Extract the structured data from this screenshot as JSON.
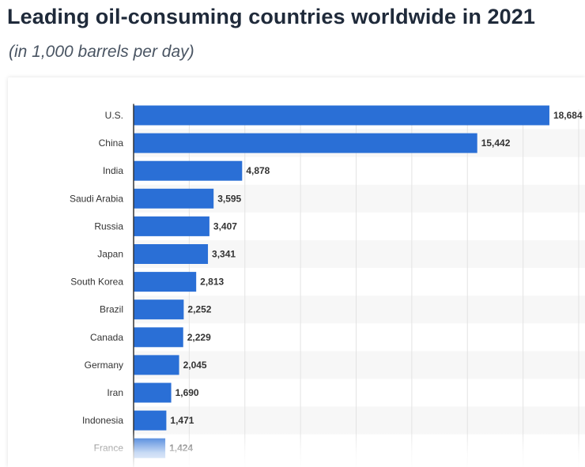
{
  "chart_data": {
    "type": "bar",
    "orientation": "horizontal",
    "title": "Leading oil-consuming countries worldwide in 2021",
    "subtitle": "(in 1,000 barrels per day)",
    "xlabel": "",
    "ylabel": "",
    "xlim": [
      0,
      20000
    ],
    "grid": true,
    "categories": [
      "U.S.",
      "China",
      "India",
      "Saudi Arabia",
      "Russia",
      "Japan",
      "South Korea",
      "Brazil",
      "Canada",
      "Germany",
      "Iran",
      "Indonesia",
      "France"
    ],
    "values": [
      18684,
      15442,
      4878,
      3595,
      3407,
      3341,
      2813,
      2252,
      2229,
      2045,
      1690,
      1471,
      1424
    ],
    "value_labels": [
      "18,684",
      "15,442",
      "4,878",
      "3,595",
      "3,407",
      "3,341",
      "2,813",
      "2,252",
      "2,229",
      "2,045",
      "1,690",
      "1,471",
      "1,424"
    ],
    "colors": {
      "bar": "#2a6fd6",
      "grid": "#e3e3e3",
      "band": "#f7f7f7",
      "axis": "#333333"
    }
  }
}
